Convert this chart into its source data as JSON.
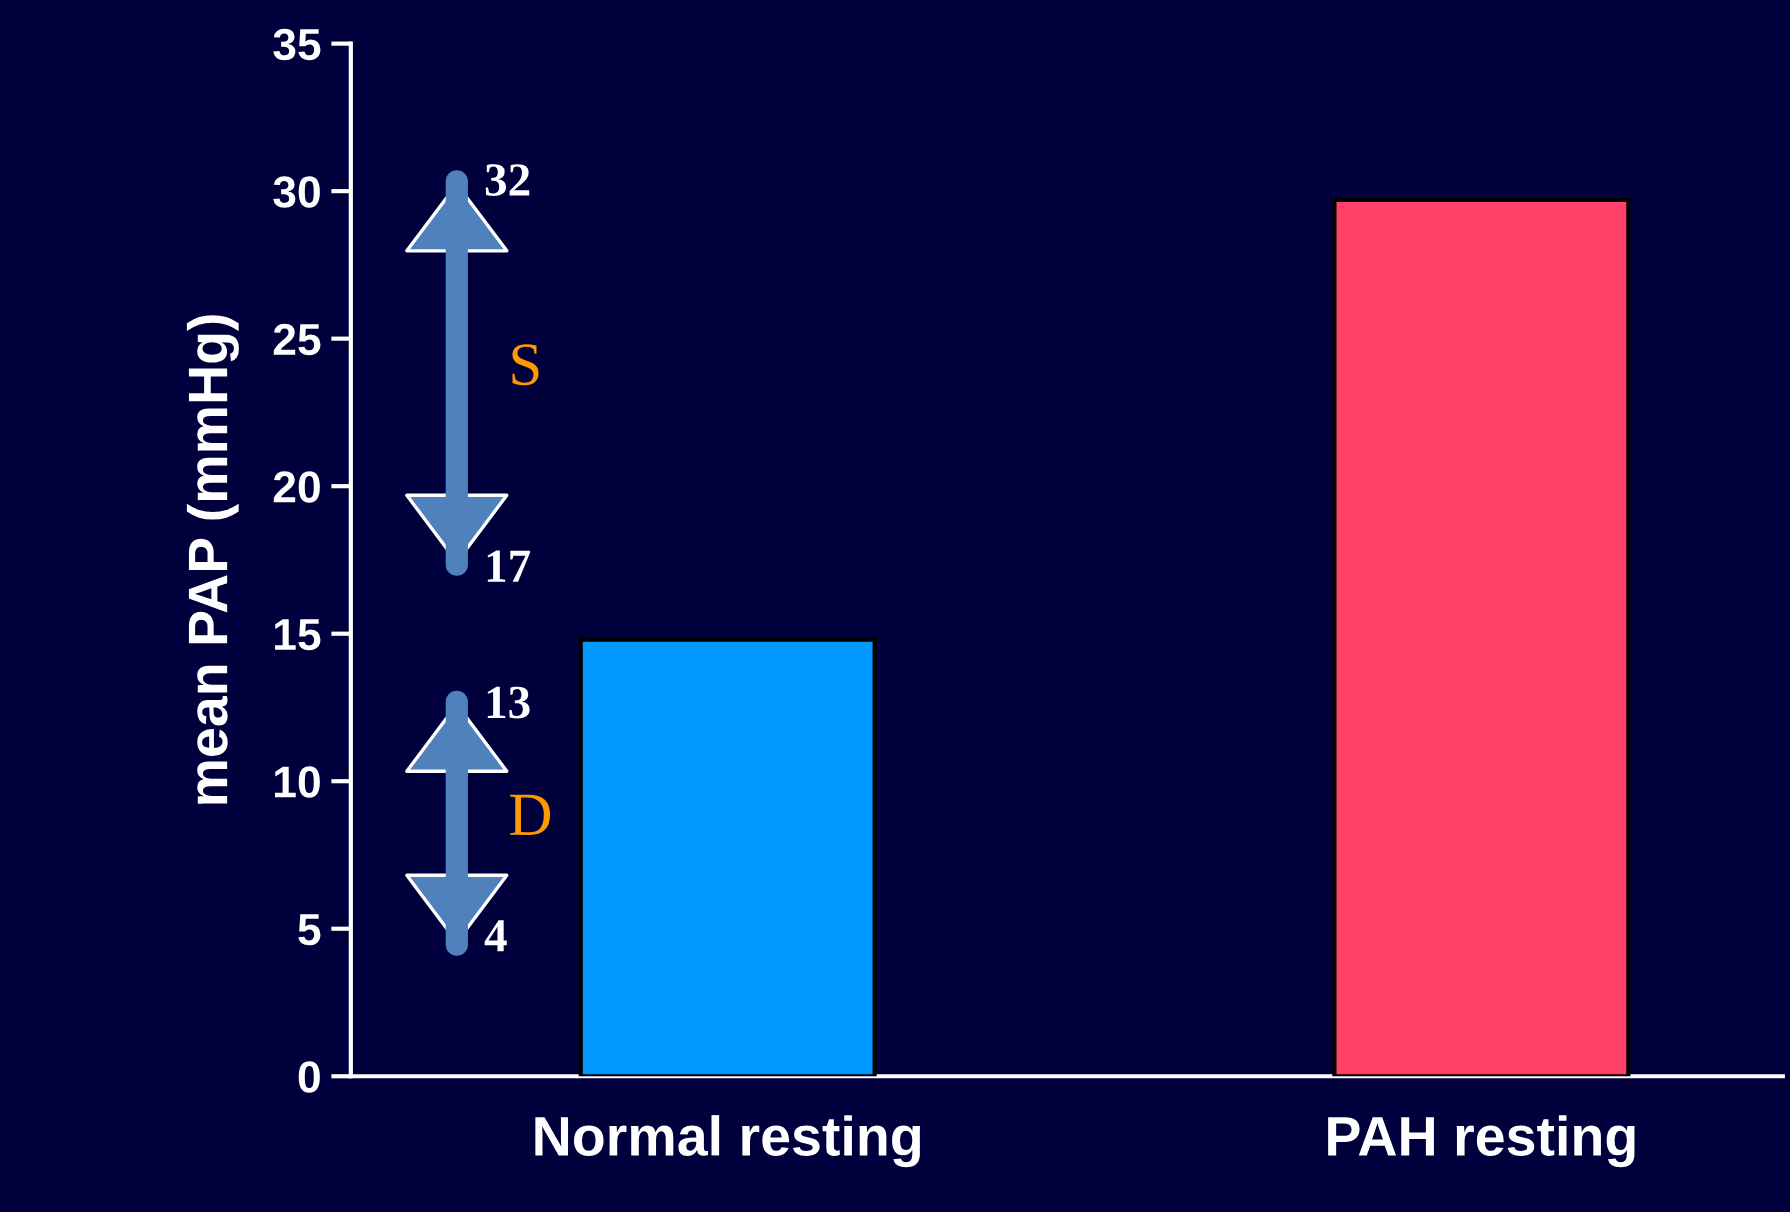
{
  "chart_data": {
    "type": "bar",
    "ylabel": "mean PAP (mmHg)",
    "categories": [
      "Normal resting",
      "PAH resting"
    ],
    "values": [
      14.8,
      29.7
    ],
    "colors": [
      "#0099ff",
      "#ff4068"
    ],
    "ylim": [
      0,
      35
    ],
    "yticks": [
      0,
      5,
      10,
      15,
      20,
      25,
      30,
      35
    ],
    "grid": false,
    "annotations": [
      "32",
      "S",
      "17",
      "13",
      "D",
      "4"
    ]
  }
}
